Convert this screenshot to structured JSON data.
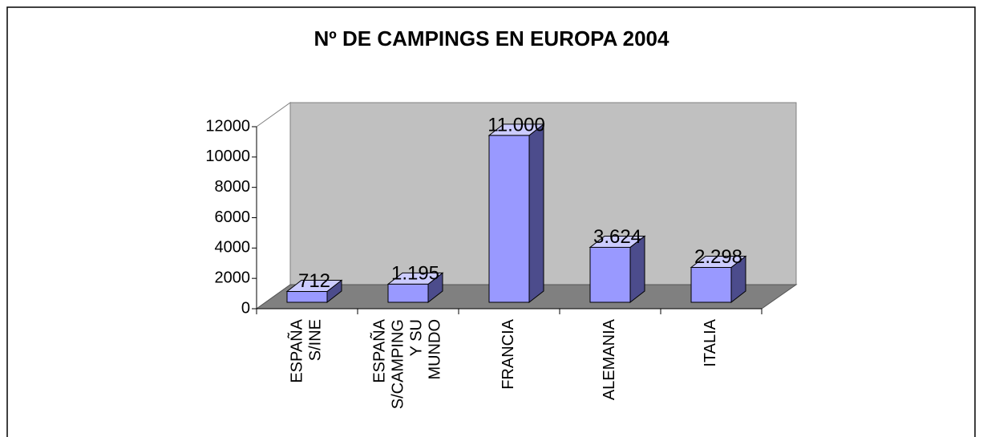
{
  "chart_data": {
    "type": "bar",
    "title": "Nº DE CAMPINGS EN EUROPA 2004",
    "categories": [
      "ESPAÑA\nS/INE",
      "ESPAÑA\nS/CAMPING\nY SU\nMUNDO",
      "FRANCIA",
      "ALEMANIA",
      "ITALIA"
    ],
    "values": [
      712,
      1195,
      11000,
      3624,
      2298
    ],
    "value_labels": [
      "712",
      "1.195",
      "11.000",
      "3.624",
      "2.298"
    ],
    "color": "#9999ff",
    "ylim": [
      0,
      12000
    ],
    "yticks": [
      0,
      2000,
      4000,
      6000,
      8000,
      10000,
      12000
    ],
    "grid": false
  }
}
